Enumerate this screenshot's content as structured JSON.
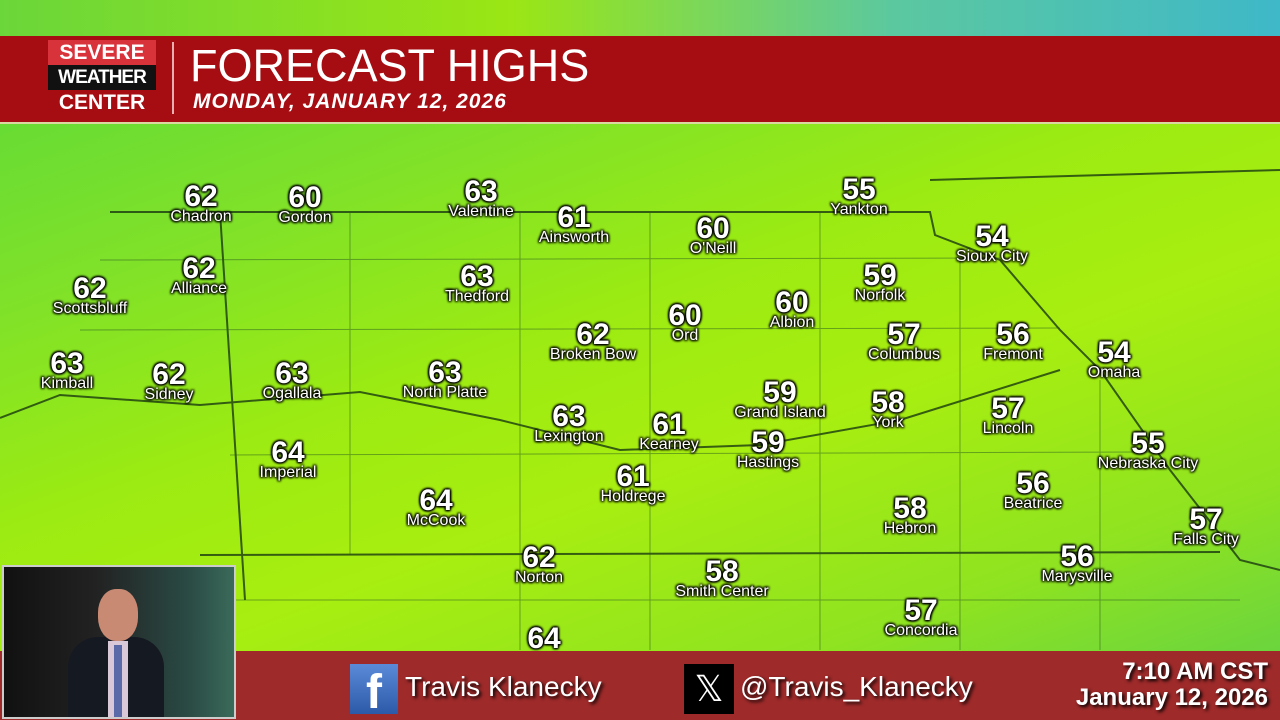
{
  "header": {
    "logo": [
      "SEVERE",
      "WEATHER",
      "CENTER"
    ],
    "title": "FORECAST HIGHS",
    "subtitle": "MONDAY,  JANUARY 12, 2026"
  },
  "cities": [
    {
      "name": "Chadron",
      "temp": "62"
    },
    {
      "name": "Gordon",
      "temp": "60"
    },
    {
      "name": "Valentine",
      "temp": "63"
    },
    {
      "name": "Ainsworth",
      "temp": "61"
    },
    {
      "name": "O'Neill",
      "temp": "60"
    },
    {
      "name": "Yankton",
      "temp": "55"
    },
    {
      "name": "Sioux City",
      "temp": "54"
    },
    {
      "name": "Scottsbluff",
      "temp": "62"
    },
    {
      "name": "Alliance",
      "temp": "62"
    },
    {
      "name": "Thedford",
      "temp": "63"
    },
    {
      "name": "Norfolk",
      "temp": "59"
    },
    {
      "name": "Albion",
      "temp": "60"
    },
    {
      "name": "Ord",
      "temp": "60"
    },
    {
      "name": "Broken Bow",
      "temp": "62"
    },
    {
      "name": "Columbus",
      "temp": "57"
    },
    {
      "name": "Fremont",
      "temp": "56"
    },
    {
      "name": "Omaha",
      "temp": "54"
    },
    {
      "name": "Kimball",
      "temp": "63"
    },
    {
      "name": "Sidney",
      "temp": "62"
    },
    {
      "name": "Ogallala",
      "temp": "63"
    },
    {
      "name": "North Platte",
      "temp": "63"
    },
    {
      "name": "Grand Island",
      "temp": "59"
    },
    {
      "name": "York",
      "temp": "58"
    },
    {
      "name": "Lincoln",
      "temp": "57"
    },
    {
      "name": "Lexington",
      "temp": "63"
    },
    {
      "name": "Kearney",
      "temp": "61"
    },
    {
      "name": "Hastings",
      "temp": "59"
    },
    {
      "name": "Nebraska City",
      "temp": "55"
    },
    {
      "name": "Imperial",
      "temp": "64"
    },
    {
      "name": "Holdrege",
      "temp": "61"
    },
    {
      "name": "Beatrice",
      "temp": "56"
    },
    {
      "name": "McCook",
      "temp": "64"
    },
    {
      "name": "Hebron",
      "temp": "58"
    },
    {
      "name": "Falls City",
      "temp": "57"
    },
    {
      "name": "Norton",
      "temp": "62"
    },
    {
      "name": "Marysville",
      "temp": "56"
    },
    {
      "name": "Smith Center",
      "temp": "58"
    },
    {
      "name": "Concordia",
      "temp": "57"
    },
    {
      "name": "",
      "temp": "64"
    }
  ],
  "footer": {
    "facebook_icon": "facebook-icon",
    "facebook_handle": "Travis Klanecky",
    "x_icon": "x-icon",
    "x_handle": "@Travis_Klanecky",
    "time": "7:10 AM CST",
    "date": "January 12, 2026"
  },
  "colors": {
    "banner": "#a60d12",
    "footer": "#9e2a2a",
    "map_green": "#9ceb12"
  }
}
